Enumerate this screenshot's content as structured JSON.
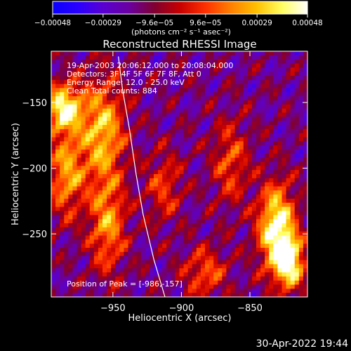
{
  "chart_data": {
    "type": "heatmap",
    "title": "Reconstructed RHESSI Image",
    "xlabel": "Heliocentric X (arcsec)",
    "ylabel": "Heliocentric Y (arcsec)",
    "xlim": [
      -995,
      -808
    ],
    "ylim": [
      -298,
      -111
    ],
    "x_ticks": [
      -950,
      -900,
      -850
    ],
    "x_tick_labels": [
      "−950",
      "−900",
      "−850"
    ],
    "y_ticks": [
      -250,
      -200,
      -150
    ],
    "y_tick_labels": [
      "−250",
      "−200",
      "−150"
    ],
    "colorbar": {
      "min": -0.00048,
      "max": 0.00048,
      "ticks": [
        -0.00048,
        -0.00029,
        -9.6e-05,
        9.6e-05,
        0.00029,
        0.00048
      ],
      "tick_labels": [
        "−0.00048",
        "−0.00029",
        "−9.6e−05",
        "9.6e−05",
        "0.00029",
        "0.00048"
      ],
      "units_text": "(photons cm⁻² s⁻¹ asec⁻²)",
      "colors": [
        "#0a00ff",
        "#2a00ff",
        "#5a00d0",
        "#6a00a0",
        "#800030",
        "#c80000",
        "#ff3000",
        "#ff8000",
        "#ffc000",
        "#ffff60",
        "#ffffff"
      ]
    },
    "annotations": [
      "19-Apr-2003 20:06:12.000 to 20:08:04.000",
      "Detectors: 3F 4F 5F 6F 7F 8F, Att 0",
      "Energy Range: 12.0 - 25.0 keV",
      "Clean     Total counts: 884"
    ],
    "peak_label": "Position of Peak = [-986,-157]",
    "limb_curve": [
      [
        -946,
        -115
      ],
      [
        -943,
        -140
      ],
      [
        -938,
        -170
      ],
      [
        -933,
        -205
      ],
      [
        -928,
        -235
      ],
      [
        -920,
        -270
      ],
      [
        -912,
        -298
      ]
    ],
    "grid": false
  },
  "footer": {
    "timestamp": "30-Apr-2022 19:44"
  }
}
